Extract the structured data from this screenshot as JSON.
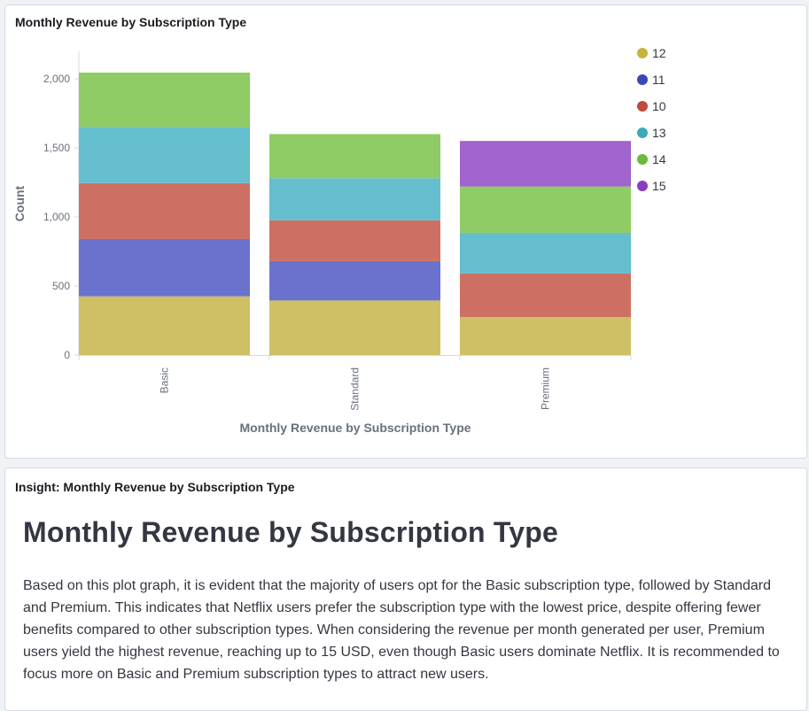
{
  "chart_panel": {
    "title": "Monthly Revenue by Subscription Type"
  },
  "insight_panel": {
    "title": "Insight: Monthly Revenue by Subscription Type",
    "heading": "Monthly Revenue by Subscription Type",
    "body": "Based on this plot graph, it is evident that the majority of users opt for the Basic subscription type, followed by Standard and Premium. This indicates that Netflix users prefer the subscription type with the lowest price, despite offering fewer benefits compared to other subscription types. When considering the revenue per month generated per user, Premium users yield the highest revenue, reaching up to 15 USD, even though Basic users dominate Netflix. It is recommended to focus more on Basic and Premium subscription types to attract new users."
  },
  "chart_data": {
    "type": "bar",
    "stacked": true,
    "categories": [
      "Basic",
      "Standard",
      "Premium"
    ],
    "series": [
      {
        "name": "12",
        "color": "#cfc065",
        "values": [
          425,
          395,
          275
        ]
      },
      {
        "name": "11",
        "color": "#6a72ce",
        "values": [
          415,
          285,
          0
        ]
      },
      {
        "name": "10",
        "color": "#cd7063",
        "values": [
          405,
          295,
          315
        ]
      },
      {
        "name": "13",
        "color": "#64bece",
        "values": [
          405,
          305,
          295
        ]
      },
      {
        "name": "14",
        "color": "#8fcc66",
        "values": [
          395,
          320,
          335
        ]
      },
      {
        "name": "15",
        "color": "#a064cc",
        "values": [
          0,
          0,
          330
        ]
      }
    ],
    "legend": [
      {
        "name": "12",
        "color": "#c8b43c"
      },
      {
        "name": "11",
        "color": "#3b47b8"
      },
      {
        "name": "10",
        "color": "#c0493a"
      },
      {
        "name": "13",
        "color": "#3aaab8"
      },
      {
        "name": "14",
        "color": "#6aba3c"
      },
      {
        "name": "15",
        "color": "#8a3cc0"
      }
    ],
    "y_ticks": [
      0,
      500,
      1000,
      1500,
      2000
    ],
    "y_tick_labels": [
      "0",
      "500",
      "1,000",
      "1,500",
      "2,000"
    ],
    "ylim": [
      0,
      2100
    ],
    "xlabel": "Monthly Revenue by Subscription Type",
    "ylabel": "Count",
    "legend_position": "right",
    "grid": false
  }
}
